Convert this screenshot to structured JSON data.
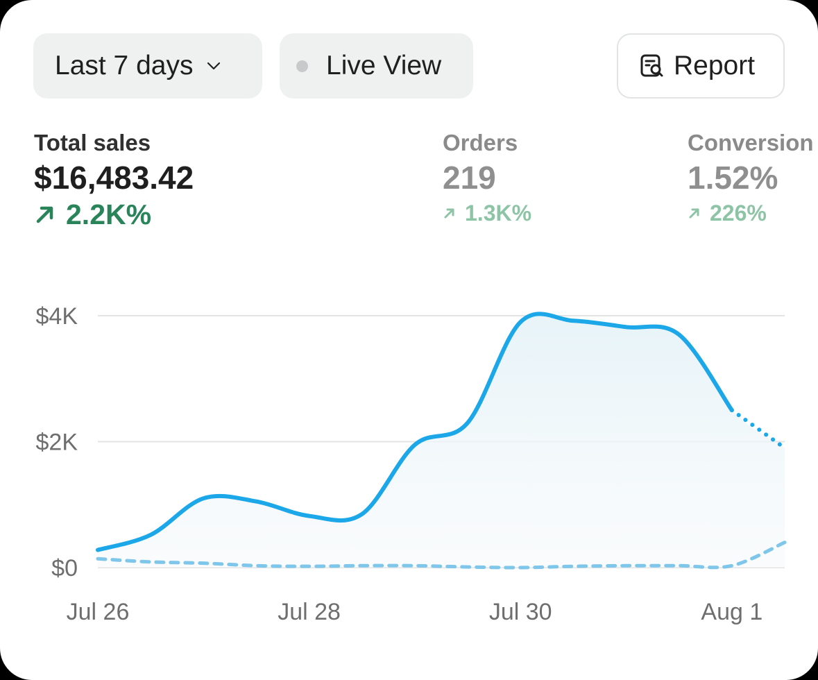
{
  "toolbar": {
    "date_range_label": "Last 7 days",
    "date_range_icon": "chevron-down-icon",
    "live_view_label": "Live View",
    "live_view_icon": "status-dot-icon",
    "report_label": "Report",
    "report_icon": "report-search-icon"
  },
  "metrics": {
    "total_sales": {
      "label": "Total sales",
      "value": "$16,483.42",
      "delta": "2.2K%",
      "delta_icon": "arrow-up-right-icon"
    },
    "orders": {
      "label": "Orders",
      "value": "219",
      "delta": "1.3K%",
      "delta_icon": "arrow-up-right-icon"
    },
    "conversion": {
      "label": "Conversion",
      "value": "1.52%",
      "delta": "226%",
      "delta_icon": "arrow-up-right-icon"
    }
  },
  "colors": {
    "positive_green": "#29845a",
    "positive_green_muted": "#8ec4a6",
    "series_current": "#1ba7e8",
    "series_comparison": "#7ec6ea",
    "gridline": "#e3e3e3"
  },
  "chart_data": {
    "type": "area",
    "x": [
      "Jul 26",
      "Jul 26.5",
      "Jul 27",
      "Jul 27.5",
      "Jul 28",
      "Jul 28.5",
      "Jul 29",
      "Jul 29.5",
      "Jul 30",
      "Jul 30.5",
      "Jul 31",
      "Jul 31.5",
      "Aug 1",
      "Aug 1.5"
    ],
    "x_tick_labels": [
      "Jul 26",
      "Jul 28",
      "Jul 30",
      "Aug 1"
    ],
    "x_tick_index": [
      0,
      4,
      8,
      12
    ],
    "y_tick_labels": [
      "$0",
      "$2K",
      "$4K"
    ],
    "y_tick_values": [
      0,
      2000,
      4000
    ],
    "ylim": [
      0,
      4000
    ],
    "grid": true,
    "series": [
      {
        "role": "current",
        "values": [
          280,
          520,
          1100,
          1050,
          820,
          850,
          1950,
          2300,
          3900,
          3920,
          3820,
          3700,
          2500,
          1900
        ],
        "dotted_from_index": 12
      },
      {
        "role": "comparison",
        "values": [
          140,
          90,
          70,
          30,
          20,
          30,
          30,
          10,
          0,
          20,
          30,
          30,
          30,
          400
        ],
        "style": "dashed"
      }
    ]
  }
}
